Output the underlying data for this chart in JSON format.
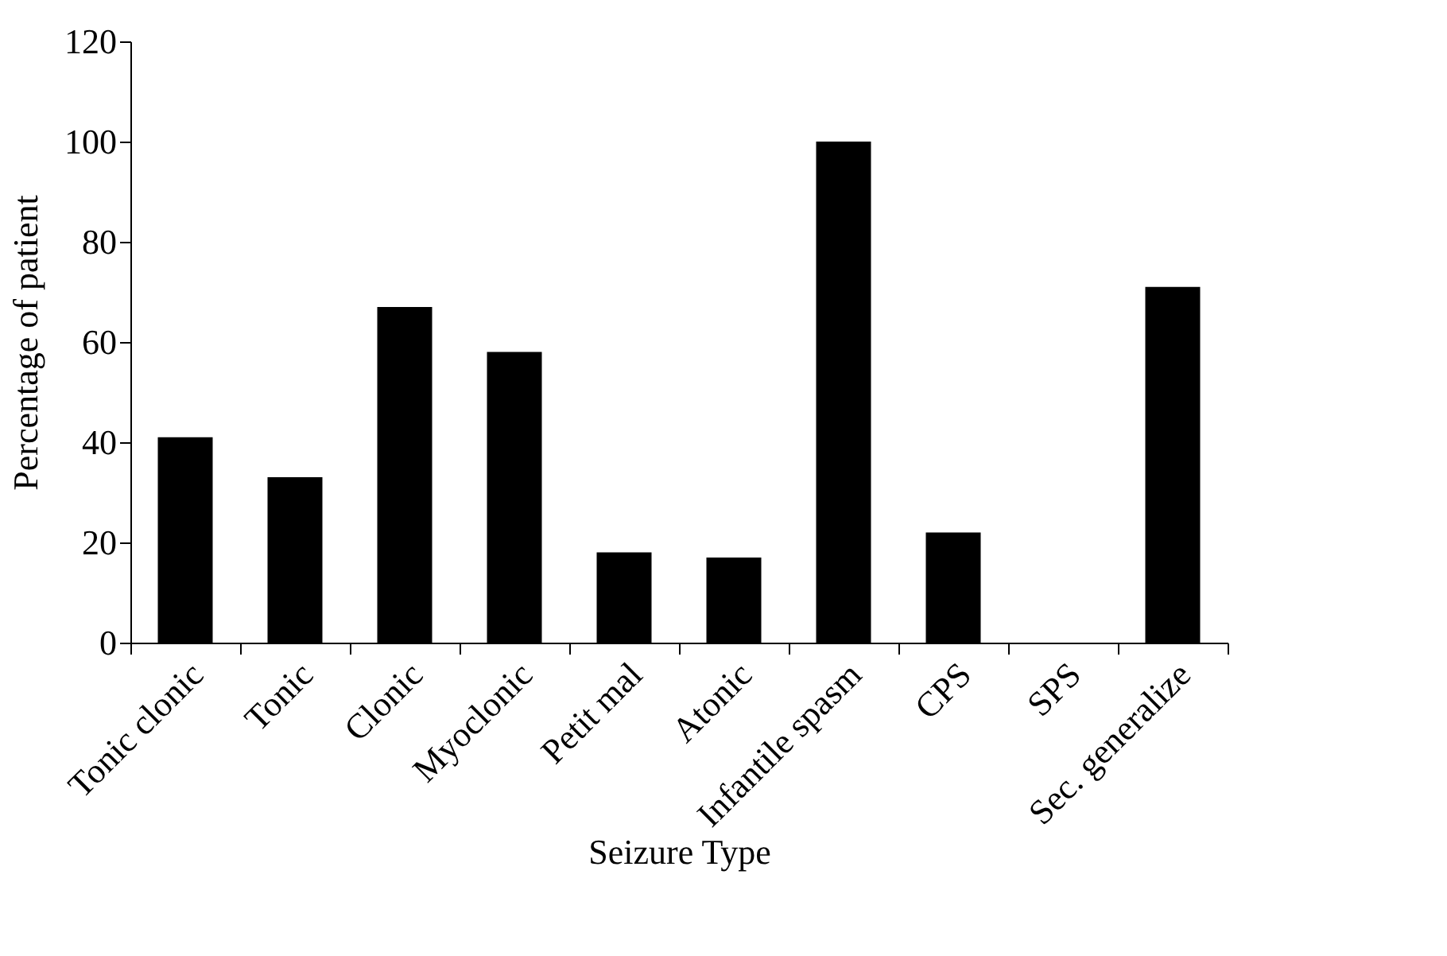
{
  "chart_data": {
    "type": "bar",
    "xlabel": "Seizure Type",
    "ylabel": "Percentage of patient",
    "categories": [
      "Tonic clonic",
      "Tonic",
      "Clonic",
      "Myoclonic",
      "Petit mal",
      "Atonic",
      "Infantile spasm",
      "CPS",
      "SPS",
      "Sec. generalize"
    ],
    "values": [
      41,
      33,
      67,
      58,
      18,
      17,
      100,
      22,
      0,
      71
    ],
    "color": "#000000",
    "ylim": [
      0,
      120
    ],
    "yticks": [
      0,
      20,
      40,
      60,
      80,
      100,
      120
    ],
    "grid": false
  }
}
